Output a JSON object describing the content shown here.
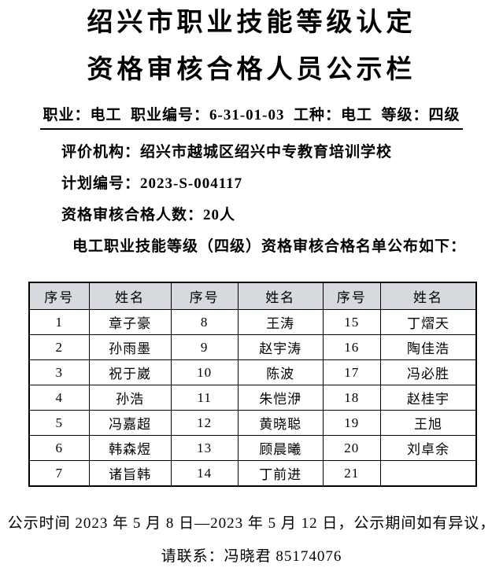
{
  "document": {
    "title_line1": "绍兴市职业技能等级认定",
    "title_line2": "资格审核合格人员公示栏",
    "meta_line": "职业：电工  职业编号：6-31-01-03  工种：电工  等级：四级",
    "info": {
      "evaluator": "评价机构：绍兴市越城区绍兴中专教育培训学校",
      "plan_number": "计划编号：2023-S-004117",
      "qualified_count": "资格审核合格人数：20人",
      "list_intro": "电工职业技能等级（四级）资格审核合格名单公布如下："
    },
    "table": {
      "headers": [
        "序号",
        "姓名",
        "序号",
        "姓名",
        "序号",
        "姓名"
      ],
      "rows": [
        [
          "1",
          "章子豪",
          "8",
          "王涛",
          "15",
          "丁熠天"
        ],
        [
          "2",
          "孙雨墨",
          "9",
          "赵宇涛",
          "16",
          "陶佳浩"
        ],
        [
          "3",
          "祝于崴",
          "10",
          "陈波",
          "17",
          "冯必胜"
        ],
        [
          "4",
          "孙浩",
          "11",
          "朱恺洢",
          "18",
          "赵桂宇"
        ],
        [
          "5",
          "冯嘉超",
          "12",
          "黄晓聪",
          "19",
          "王旭"
        ],
        [
          "6",
          "韩森煜",
          "13",
          "顾晨曦",
          "20",
          "刘卓余"
        ],
        [
          "7",
          "诸旨韩",
          "14",
          "丁前进",
          "21",
          ""
        ]
      ]
    },
    "footer": {
      "line1": "公示时间 2023 年 5 月 8 日—2023 年 5 月 12 日，公示期间如有异议，",
      "line2": "请联系：冯晓君 85174076"
    },
    "colors": {
      "background": "#ffffff",
      "text": "#000000",
      "table_header_bg": "#d6dade",
      "table_border": "#000000"
    }
  }
}
